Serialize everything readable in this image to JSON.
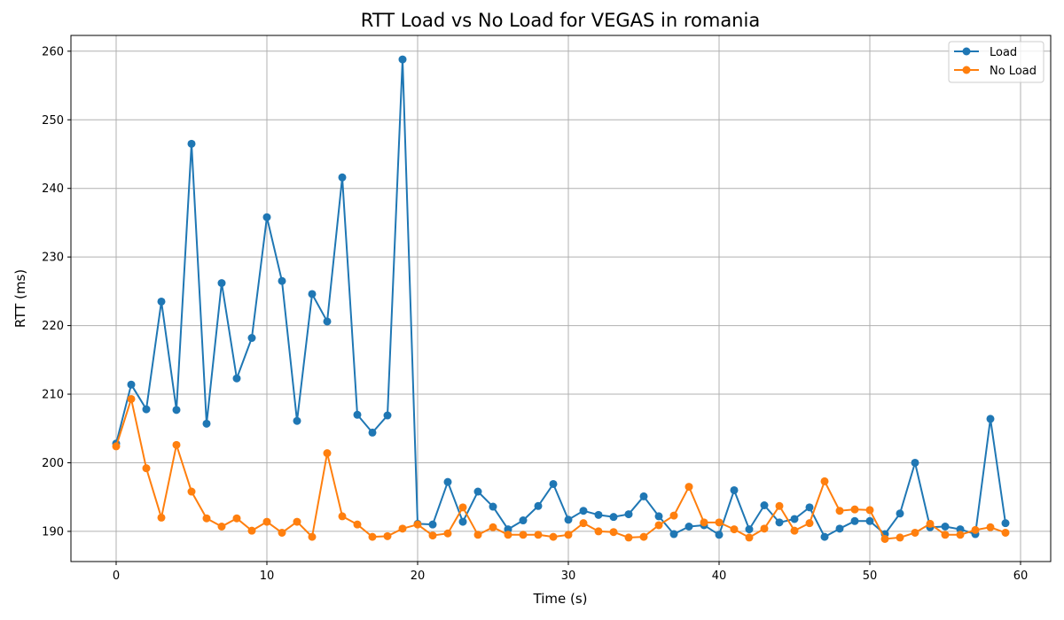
{
  "chart_data": {
    "type": "line",
    "title": "RTT Load vs No Load for VEGAS in romania",
    "xlabel": "Time (s)",
    "ylabel": "RTT (ms)",
    "xlim": [
      -3,
      62
    ],
    "ylim": [
      185.6,
      262.3
    ],
    "xticks": [
      0,
      10,
      20,
      30,
      40,
      50,
      60
    ],
    "yticks": [
      190,
      200,
      210,
      220,
      230,
      240,
      250,
      260
    ],
    "grid": true,
    "legend_position": "top-right",
    "x": [
      0,
      1,
      2,
      3,
      4,
      5,
      6,
      7,
      8,
      9,
      10,
      11,
      12,
      13,
      14,
      15,
      16,
      17,
      18,
      19,
      20,
      21,
      22,
      23,
      24,
      25,
      26,
      27,
      28,
      29,
      30,
      31,
      32,
      33,
      34,
      35,
      36,
      37,
      38,
      39,
      40,
      41,
      42,
      43,
      44,
      45,
      46,
      47,
      48,
      49,
      50,
      51,
      52,
      53,
      54,
      55,
      56,
      57,
      58,
      59
    ],
    "series": [
      {
        "name": "Load",
        "color": "#1f77b4",
        "values": [
          202.8,
          211.4,
          207.8,
          223.5,
          207.7,
          246.5,
          205.7,
          226.2,
          212.3,
          218.2,
          235.8,
          226.5,
          206.1,
          224.6,
          220.6,
          241.6,
          207.0,
          204.4,
          206.9,
          258.8,
          191.1,
          191.0,
          197.2,
          191.4,
          195.8,
          193.6,
          190.3,
          191.6,
          193.7,
          196.9,
          191.7,
          193.0,
          192.4,
          192.1,
          192.5,
          195.1,
          192.2,
          189.6,
          190.7,
          190.9,
          189.5,
          196.0,
          190.3,
          193.8,
          191.3,
          191.8,
          193.5,
          189.2,
          190.4,
          191.5,
          191.5,
          189.6,
          192.6,
          200.0,
          190.6,
          190.7,
          190.3,
          189.6,
          206.4,
          191.2
        ]
      },
      {
        "name": "No Load",
        "color": "#ff7f0e",
        "values": [
          202.4,
          209.3,
          199.2,
          192.0,
          202.6,
          195.8,
          191.9,
          190.7,
          191.9,
          190.1,
          191.4,
          189.8,
          191.4,
          189.2,
          201.4,
          192.2,
          191.0,
          189.2,
          189.3,
          190.4,
          191.0,
          189.4,
          189.7,
          193.5,
          189.5,
          190.6,
          189.5,
          189.5,
          189.5,
          189.2,
          189.5,
          191.2,
          190.0,
          189.9,
          189.1,
          189.2,
          190.9,
          192.3,
          196.5,
          191.3,
          191.3,
          190.3,
          189.1,
          190.4,
          193.7,
          190.1,
          191.2,
          197.3,
          193.0,
          193.2,
          193.1,
          188.9,
          189.1,
          189.8,
          191.1,
          189.5,
          189.5,
          190.2,
          190.6,
          189.8
        ]
      }
    ]
  }
}
